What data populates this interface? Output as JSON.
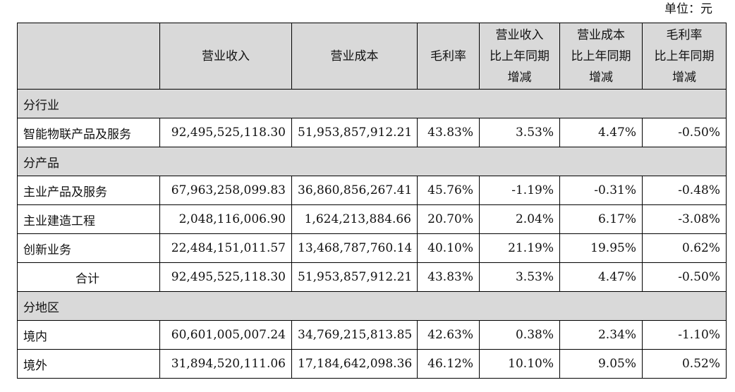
{
  "unit_label": "单位：元",
  "headers": {
    "revenue": "营业收入",
    "cost": "营业成本",
    "margin": "毛利率",
    "revenue_change": [
      "营业收入",
      "比上年同期",
      "增减"
    ],
    "cost_change": [
      "营业成本",
      "比上年同期",
      "增减"
    ],
    "margin_change": [
      "毛利率",
      "比上年同期",
      "增减"
    ]
  },
  "sections": {
    "industry": "分行业",
    "product": "分产品",
    "region": "分地区"
  },
  "rows": {
    "industry_1": [
      "智能物联产品及服务",
      "92,495,525,118.30",
      "51,953,857,912.21",
      "43.83%",
      "3.53%",
      "4.47%",
      "-0.50%"
    ],
    "product_1": [
      "主业产品及服务",
      "67,963,258,099.83",
      "36,860,856,267.41",
      "45.76%",
      "-1.19%",
      "-0.31%",
      "-0.48%"
    ],
    "product_2": [
      "主业建造工程",
      "2,048,116,006.90",
      "1,624,213,884.66",
      "20.70%",
      "2.04%",
      "6.17%",
      "-3.08%"
    ],
    "product_3": [
      "创新业务",
      "22,484,151,011.57",
      "13,468,787,760.14",
      "40.10%",
      "21.19%",
      "19.95%",
      "0.62%"
    ],
    "product_total": [
      "合计",
      "92,495,525,118.30",
      "51,953,857,912.21",
      "43.83%",
      "3.53%",
      "4.47%",
      "-0.50%"
    ],
    "region_1": [
      "境内",
      "60,601,005,007.24",
      "34,769,215,813.85",
      "42.63%",
      "0.38%",
      "2.34%",
      "-1.10%"
    ],
    "region_2": [
      "境外",
      "31,894,520,111.06",
      "17,184,642,098.36",
      "46.12%",
      "10.10%",
      "9.05%",
      "0.52%"
    ]
  }
}
